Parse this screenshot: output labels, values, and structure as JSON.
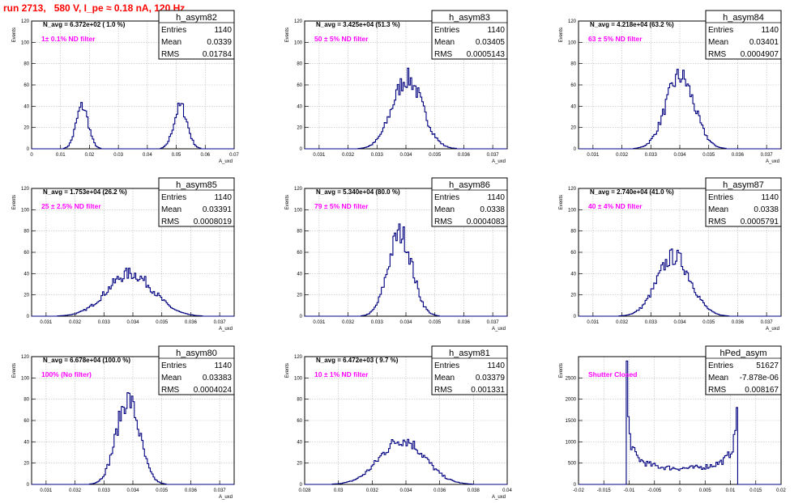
{
  "page_title": "run 2713,   580 V, I_pe ≈ 0.18 nA, 120 Hz",
  "chart_data": [
    {
      "type": "bar",
      "name": "h_asym82",
      "title": "N_avg = 6.372e+02 ( 1.0 %)",
      "annotation": "1± 0.1% ND filter",
      "xlabel": "A_uxd",
      "ylabel": "Events",
      "xlim": [
        0,
        0.07
      ],
      "ylim": [
        0,
        120
      ],
      "xticks": [
        0,
        0.01,
        0.02,
        0.03,
        0.04,
        0.05,
        0.06,
        0.07
      ],
      "xtick_labels": [
        "0",
        "0.01",
        "0.02",
        "0.03",
        "0.04",
        "0.05",
        "0.06",
        "0.07"
      ],
      "yticks": [
        0,
        20,
        40,
        60,
        80,
        100,
        120
      ],
      "grid": true,
      "stats": {
        "title": "h_asym82",
        "entries": "1140",
        "mean": "0.0339",
        "rms": "0.01784"
      },
      "components": [
        {
          "center": 0.0175,
          "sigma": 0.0021,
          "peak": 40
        },
        {
          "center": 0.0515,
          "sigma": 0.0023,
          "peak": 40
        }
      ],
      "bins": 140
    },
    {
      "type": "bar",
      "name": "h_asym83",
      "title": "N_avg = 3.425e+04 (51.3 %)",
      "annotation": "50 ± 5% ND filter",
      "xlabel": "A_uxd",
      "ylabel": "Events",
      "xlim": [
        0.0305,
        0.0375
      ],
      "ylim": [
        0,
        120
      ],
      "xticks": [
        0.031,
        0.032,
        0.033,
        0.034,
        0.035,
        0.036,
        0.037
      ],
      "xtick_labels": [
        "0.031",
        "0.032",
        "0.033",
        "0.034",
        "0.035",
        "0.036",
        "0.037"
      ],
      "yticks": [
        0,
        20,
        40,
        60,
        80,
        100,
        120
      ],
      "grid": true,
      "stats": {
        "title": "h_asym83",
        "entries": "1140",
        "mean": "0.03405",
        "rms": "0.0005143"
      },
      "components": [
        {
          "center": 0.03405,
          "sigma": 0.00052,
          "peak": 66
        }
      ],
      "bins": 140
    },
    {
      "type": "bar",
      "name": "h_asym84",
      "title": "N_avg = 4.218e+04 (63.2 %)",
      "annotation": "63 ± 5% ND filter",
      "xlabel": "A_uxd",
      "ylabel": "Events",
      "xlim": [
        0.0305,
        0.0375
      ],
      "ylim": [
        0,
        120
      ],
      "xticks": [
        0.031,
        0.032,
        0.033,
        0.034,
        0.035,
        0.036,
        0.037
      ],
      "xtick_labels": [
        "0.031",
        "0.032",
        "0.033",
        "0.034",
        "0.035",
        "0.036",
        "0.037"
      ],
      "yticks": [
        0,
        20,
        40,
        60,
        80,
        100,
        120
      ],
      "grid": true,
      "stats": {
        "title": "h_asym84",
        "entries": "1140",
        "mean": "0.03401",
        "rms": "0.0004907"
      },
      "components": [
        {
          "center": 0.03401,
          "sigma": 0.00049,
          "peak": 68
        }
      ],
      "bins": 140
    },
    {
      "type": "bar",
      "name": "h_asym85",
      "title": "N_avg = 1.753e+04 (26.2 %)",
      "annotation": "25 ± 2.5% ND filter",
      "xlabel": "A_uxd",
      "ylabel": "Events",
      "xlim": [
        0.0305,
        0.0375
      ],
      "ylim": [
        0,
        120
      ],
      "xticks": [
        0.031,
        0.032,
        0.033,
        0.034,
        0.035,
        0.036,
        0.037
      ],
      "xtick_labels": [
        "0.031",
        "0.032",
        "0.033",
        "0.034",
        "0.035",
        "0.036",
        "0.037"
      ],
      "yticks": [
        0,
        20,
        40,
        60,
        80,
        100,
        120
      ],
      "grid": true,
      "stats": {
        "title": "h_asym85",
        "entries": "1140",
        "mean": "0.03391",
        "rms": "0.0008019"
      },
      "components": [
        {
          "center": 0.03391,
          "sigma": 0.0008,
          "peak": 40
        }
      ],
      "bins": 140
    },
    {
      "type": "bar",
      "name": "h_asym86",
      "title": "N_avg = 5.340e+04 (80.0 %)",
      "annotation": "79 ± 5% ND filter",
      "xlabel": "A_uxd",
      "ylabel": "Events",
      "xlim": [
        0.0305,
        0.0375
      ],
      "ylim": [
        0,
        120
      ],
      "xticks": [
        0.031,
        0.032,
        0.033,
        0.034,
        0.035,
        0.036,
        0.037
      ],
      "xtick_labels": [
        "0.031",
        "0.032",
        "0.033",
        "0.034",
        "0.035",
        "0.036",
        "0.037"
      ],
      "yticks": [
        0,
        20,
        40,
        60,
        80,
        100,
        120
      ],
      "grid": true,
      "stats": {
        "title": "h_asym86",
        "entries": "1140",
        "mean": "0.0338",
        "rms": "0.0004083"
      },
      "components": [
        {
          "center": 0.0338,
          "sigma": 0.00041,
          "peak": 78
        }
      ],
      "bins": 140
    },
    {
      "type": "bar",
      "name": "h_asym87",
      "title": "N_avg = 2.740e+04 (41.0 %)",
      "annotation": "40 ± 4% ND filter",
      "xlabel": "A_uxd",
      "ylabel": "Events",
      "xlim": [
        0.0305,
        0.0375
      ],
      "ylim": [
        0,
        120
      ],
      "xticks": [
        0.031,
        0.032,
        0.033,
        0.034,
        0.035,
        0.036,
        0.037
      ],
      "xtick_labels": [
        "0.031",
        "0.032",
        "0.033",
        "0.034",
        "0.035",
        "0.036",
        "0.037"
      ],
      "yticks": [
        0,
        20,
        40,
        60,
        80,
        100,
        120
      ],
      "grid": true,
      "stats": {
        "title": "h_asym87",
        "entries": "1140",
        "mean": "0.0338",
        "rms": "0.0005791"
      },
      "components": [
        {
          "center": 0.0338,
          "sigma": 0.00058,
          "peak": 56
        }
      ],
      "bins": 140
    },
    {
      "type": "bar",
      "name": "h_asym80",
      "title": "N_avg = 6.678e+04 (100.0 %)",
      "annotation": "100% (No filter)",
      "xlabel": "A_uxd",
      "ylabel": "Events",
      "xlim": [
        0.0305,
        0.0375
      ],
      "ylim": [
        0,
        120
      ],
      "xticks": [
        0.031,
        0.032,
        0.033,
        0.034,
        0.035,
        0.036,
        0.037
      ],
      "xtick_labels": [
        "0.031",
        "0.032",
        "0.033",
        "0.034",
        "0.035",
        "0.036",
        "0.037"
      ],
      "yticks": [
        0,
        20,
        40,
        60,
        80,
        100,
        120
      ],
      "grid": true,
      "stats": {
        "title": "h_asym80",
        "entries": "1140",
        "mean": "0.03383",
        "rms": "0.0004024"
      },
      "components": [
        {
          "center": 0.03383,
          "sigma": 0.0004,
          "peak": 80
        }
      ],
      "bins": 140
    },
    {
      "type": "bar",
      "name": "h_asym81",
      "title": "N_avg = 6.472e+03 ( 9.7 %)",
      "annotation": "10 ± 1% ND filter",
      "xlabel": "A_uxd",
      "ylabel": "Events",
      "xlim": [
        0.028,
        0.04
      ],
      "ylim": [
        0,
        120
      ],
      "xticks": [
        0.028,
        0.03,
        0.032,
        0.034,
        0.036,
        0.038,
        0.04
      ],
      "xtick_labels": [
        "0.028",
        "0.03",
        "0.032",
        "0.034",
        "0.036",
        "0.038",
        "0.04"
      ],
      "yticks": [
        0,
        20,
        40,
        60,
        80,
        100,
        120
      ],
      "grid": true,
      "stats": {
        "title": "h_asym81",
        "entries": "1140",
        "mean": "0.03379",
        "rms": "0.001331"
      },
      "components": [
        {
          "center": 0.03379,
          "sigma": 0.00133,
          "peak": 42
        }
      ],
      "bins": 140
    },
    {
      "type": "bar",
      "name": "hPed_asym",
      "title": "",
      "annotation": "Shutter Closed",
      "xlabel": "",
      "ylabel": "Events",
      "xlim": [
        -0.02,
        0.02
      ],
      "ylim": [
        0,
        3000
      ],
      "xticks": [
        -0.02,
        -0.015,
        -0.01,
        -0.005,
        0,
        0.005,
        0.01,
        0.015,
        0.02
      ],
      "xtick_labels": [
        "-0.02",
        "-0.015",
        "-0.01",
        "-0.005",
        "0",
        "0.005",
        "0.01",
        "0.015",
        "0.02"
      ],
      "yticks": [
        0,
        500,
        1000,
        1500,
        2000,
        2500
      ],
      "grid": true,
      "stats": {
        "title": "hPed_asym",
        "entries": "51627",
        "mean": "-7.878e-06",
        "rms": "0.008167"
      },
      "profile": "arcsine",
      "arcsine": {
        "low": -0.0105,
        "high": 0.0115,
        "floor": 380,
        "peak": 2800
      },
      "bins": 140
    }
  ]
}
